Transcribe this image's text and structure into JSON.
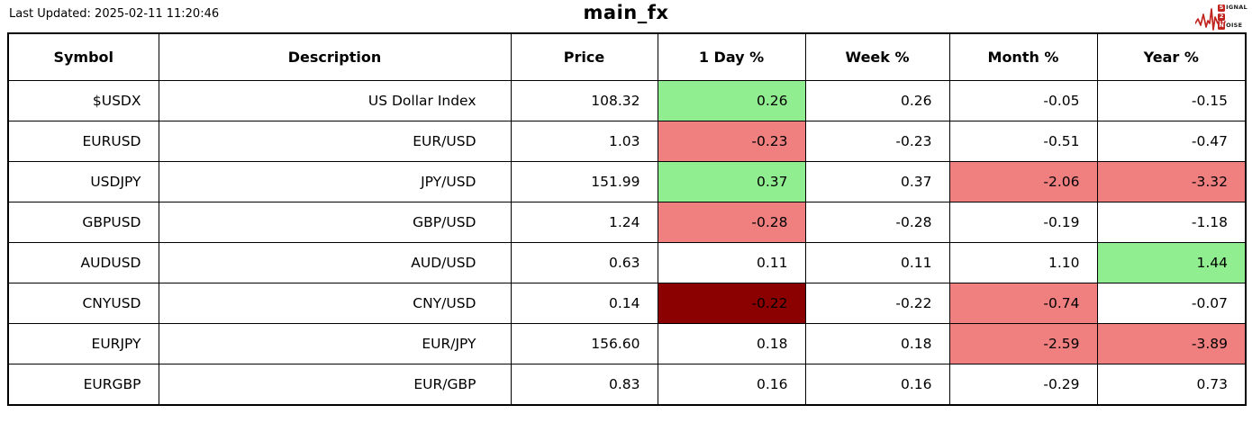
{
  "header": {
    "last_updated": "Last Updated: 2025-02-11 11:20:46",
    "title": "main_fx",
    "logo": {
      "s": "S",
      "ignal": "IGNAL",
      "two": "2",
      "n": "N",
      "oise": "OISE"
    }
  },
  "colors": {
    "positive": "#90EE90",
    "negative": "#F08080",
    "strong_negative": "#8B0000",
    "logo_red": "#c0251f",
    "border": "#000000"
  },
  "table": {
    "columns": [
      "Symbol",
      "Description",
      "Price",
      "1 Day %",
      "Week %",
      "Month %",
      "Year %"
    ],
    "column_keys": [
      "symbol",
      "description",
      "price",
      "day-pct",
      "week-pct",
      "month-pct",
      "year-pct"
    ],
    "rows": [
      {
        "cells": [
          {
            "v": "$USDX"
          },
          {
            "v": "US Dollar Index"
          },
          {
            "v": "108.32"
          },
          {
            "v": "0.26",
            "bg": "positive"
          },
          {
            "v": "0.26"
          },
          {
            "v": "-0.05"
          },
          {
            "v": "-0.15"
          }
        ]
      },
      {
        "cells": [
          {
            "v": "EURUSD"
          },
          {
            "v": "EUR/USD"
          },
          {
            "v": "1.03"
          },
          {
            "v": "-0.23",
            "bg": "negative"
          },
          {
            "v": "-0.23"
          },
          {
            "v": "-0.51"
          },
          {
            "v": "-0.47"
          }
        ]
      },
      {
        "cells": [
          {
            "v": "USDJPY"
          },
          {
            "v": "JPY/USD"
          },
          {
            "v": "151.99"
          },
          {
            "v": "0.37",
            "bg": "positive"
          },
          {
            "v": "0.37"
          },
          {
            "v": "-2.06",
            "bg": "negative"
          },
          {
            "v": "-3.32",
            "bg": "negative"
          }
        ]
      },
      {
        "cells": [
          {
            "v": "GBPUSD"
          },
          {
            "v": "GBP/USD"
          },
          {
            "v": "1.24"
          },
          {
            "v": "-0.28",
            "bg": "negative"
          },
          {
            "v": "-0.28"
          },
          {
            "v": "-0.19"
          },
          {
            "v": "-1.18"
          }
        ]
      },
      {
        "cells": [
          {
            "v": "AUDUSD"
          },
          {
            "v": "AUD/USD"
          },
          {
            "v": "0.63"
          },
          {
            "v": "0.11"
          },
          {
            "v": "0.11"
          },
          {
            "v": "1.10"
          },
          {
            "v": "1.44",
            "bg": "positive"
          }
        ]
      },
      {
        "cells": [
          {
            "v": "CNYUSD"
          },
          {
            "v": "CNY/USD"
          },
          {
            "v": "0.14"
          },
          {
            "v": "-0.22",
            "bg": "strong_negative"
          },
          {
            "v": "-0.22"
          },
          {
            "v": "-0.74",
            "bg": "negative"
          },
          {
            "v": "-0.07"
          }
        ]
      },
      {
        "cells": [
          {
            "v": "EURJPY"
          },
          {
            "v": "EUR/JPY"
          },
          {
            "v": "156.60"
          },
          {
            "v": "0.18"
          },
          {
            "v": "0.18"
          },
          {
            "v": "-2.59",
            "bg": "negative"
          },
          {
            "v": "-3.89",
            "bg": "negative"
          }
        ]
      },
      {
        "cells": [
          {
            "v": "EURGBP"
          },
          {
            "v": "EUR/GBP"
          },
          {
            "v": "0.83"
          },
          {
            "v": "0.16"
          },
          {
            "v": "0.16"
          },
          {
            "v": "-0.29"
          },
          {
            "v": "0.73"
          }
        ]
      }
    ]
  },
  "chart_data": {
    "type": "table",
    "title": "main_fx",
    "last_updated": "2025-02-11 11:20:46",
    "columns": [
      "Symbol",
      "Description",
      "Price",
      "1 Day %",
      "Week %",
      "Month %",
      "Year %"
    ],
    "rows": [
      [
        "$USDX",
        "US Dollar Index",
        108.32,
        0.26,
        0.26,
        -0.05,
        -0.15
      ],
      [
        "EURUSD",
        "EUR/USD",
        1.03,
        -0.23,
        -0.23,
        -0.51,
        -0.47
      ],
      [
        "USDJPY",
        "JPY/USD",
        151.99,
        0.37,
        0.37,
        -2.06,
        -3.32
      ],
      [
        "GBPUSD",
        "GBP/USD",
        1.24,
        -0.28,
        -0.28,
        -0.19,
        -1.18
      ],
      [
        "AUDUSD",
        "AUD/USD",
        0.63,
        0.11,
        0.11,
        1.1,
        1.44
      ],
      [
        "CNYUSD",
        "CNY/USD",
        0.14,
        -0.22,
        -0.22,
        -0.74,
        -0.07
      ],
      [
        "EURJPY",
        "EUR/JPY",
        156.6,
        0.18,
        0.18,
        -2.59,
        -3.89
      ],
      [
        "EURGBP",
        "EUR/GBP",
        0.83,
        0.16,
        0.16,
        -0.29,
        0.73
      ]
    ],
    "cell_highlights": [
      {
        "row": 0,
        "column": "1 Day %",
        "color": "#90EE90"
      },
      {
        "row": 1,
        "column": "1 Day %",
        "color": "#F08080"
      },
      {
        "row": 2,
        "column": "1 Day %",
        "color": "#90EE90"
      },
      {
        "row": 2,
        "column": "Month %",
        "color": "#F08080"
      },
      {
        "row": 2,
        "column": "Year %",
        "color": "#F08080"
      },
      {
        "row": 3,
        "column": "1 Day %",
        "color": "#F08080"
      },
      {
        "row": 4,
        "column": "Year %",
        "color": "#90EE90"
      },
      {
        "row": 5,
        "column": "1 Day %",
        "color": "#8B0000"
      },
      {
        "row": 5,
        "column": "Month %",
        "color": "#F08080"
      },
      {
        "row": 6,
        "column": "Month %",
        "color": "#F08080"
      },
      {
        "row": 6,
        "column": "Year %",
        "color": "#F08080"
      }
    ],
    "legend_position": "none",
    "grid": true
  }
}
